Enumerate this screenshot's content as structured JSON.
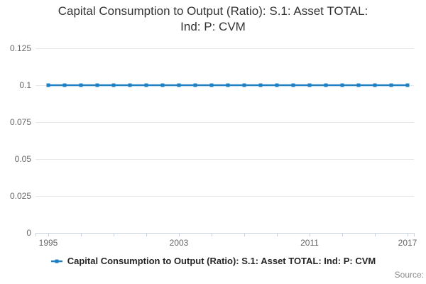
{
  "title": "Capital Consumption to Output (Ratio): S.1: Asset TOTAL: Ind: P: CVM",
  "legend": {
    "label": "Capital Consumption to Output (Ratio): S.1: Asset TOTAL: Ind: P: CVM"
  },
  "source_label": "Source:",
  "colors": {
    "series": "#1e80c3",
    "grid": "#e6e6e6",
    "axis": "#c9d4de",
    "tick_label": "#666666",
    "title_text": "#333333"
  },
  "chart_data": {
    "type": "line",
    "title": "Capital Consumption to Output (Ratio): S.1: Asset TOTAL: Ind: P: CVM",
    "x": [
      1995,
      1996,
      1997,
      1998,
      1999,
      2000,
      2001,
      2002,
      2003,
      2004,
      2005,
      2006,
      2007,
      2008,
      2009,
      2010,
      2011,
      2012,
      2013,
      2014,
      2015,
      2016,
      2017
    ],
    "series": [
      {
        "name": "Capital Consumption to Output (Ratio): S.1: Asset TOTAL: Ind: P: CVM",
        "values": [
          0.1,
          0.1,
          0.1,
          0.1,
          0.1,
          0.1,
          0.1,
          0.1,
          0.1,
          0.1,
          0.1,
          0.1,
          0.1,
          0.1,
          0.1,
          0.1,
          0.1,
          0.1,
          0.1,
          0.1,
          0.1,
          0.1,
          0.1
        ]
      }
    ],
    "xlabel": "",
    "ylabel": "",
    "ylim": [
      0,
      0.125
    ],
    "yticks": [
      0,
      0.025,
      0.05,
      0.075,
      0.1,
      0.125
    ],
    "ytick_labels": [
      "0",
      "0.025",
      "0.05",
      "0.075",
      "0.1",
      "0.125"
    ],
    "xtick_step_years": 2,
    "xtick_labeled": [
      1995,
      2003,
      2011,
      2017
    ],
    "grid": "horizontal",
    "legend_position": "bottom",
    "marker": "square"
  }
}
